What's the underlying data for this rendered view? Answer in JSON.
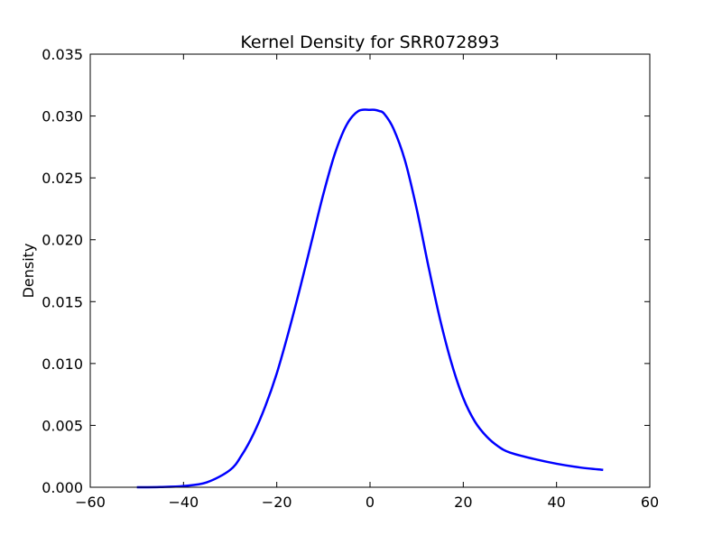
{
  "chart_data": {
    "type": "line",
    "title": "Kernel Density for SRR072893",
    "xlabel": "",
    "ylabel": "Density",
    "xlim": [
      -60,
      60
    ],
    "ylim": [
      0,
      0.035
    ],
    "x_ticks": [
      "−60",
      "−40",
      "−20",
      "0",
      "20",
      "40",
      "60"
    ],
    "y_ticks": [
      "0.000",
      "0.005",
      "0.010",
      "0.015",
      "0.020",
      "0.025",
      "0.030",
      "0.035"
    ],
    "grid": false,
    "legend": "none",
    "line_color": "#0000ff",
    "series": [
      {
        "x": [
          -50,
          -45,
          -40,
          -35,
          -30,
          -27.5,
          -25,
          -22.5,
          -20,
          -17.5,
          -15,
          -12.5,
          -10,
          -7.5,
          -5,
          -2.5,
          0,
          1,
          2,
          3,
          5,
          7.5,
          10,
          12.5,
          15,
          17.5,
          20,
          22.5,
          25,
          27.5,
          30,
          35,
          40,
          45,
          50
        ],
        "y": [
          0.0,
          2e-05,
          0.0001,
          0.0004,
          0.0014,
          0.0026,
          0.0043,
          0.0065,
          0.0092,
          0.0125,
          0.0161,
          0.0199,
          0.0237,
          0.027,
          0.0293,
          0.0304,
          0.0305,
          0.0305,
          0.0304,
          0.0302,
          0.029,
          0.0264,
          0.0225,
          0.0179,
          0.0136,
          0.01,
          0.0072,
          0.0053,
          0.0041,
          0.0033,
          0.0028,
          0.0023,
          0.0019,
          0.0016,
          0.0014
        ]
      }
    ]
  }
}
